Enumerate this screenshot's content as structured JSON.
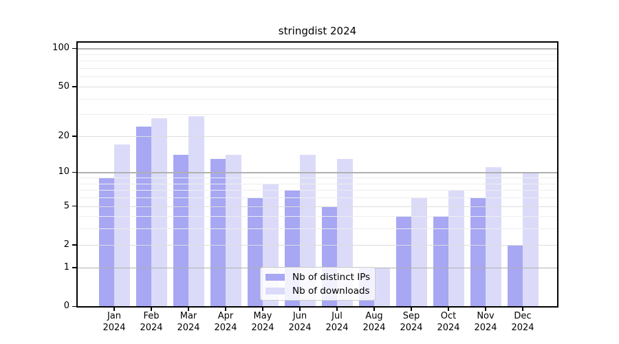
{
  "title": "stringdist 2024",
  "colors": {
    "bar_ips": "#a7a7f3",
    "bar_downloads": "#dbdbf9",
    "grid_major": "#b0b0b0",
    "grid_mid": "#dddddd",
    "grid_minor": "#eeeeee",
    "axis": "#000000",
    "legend_background": "rgba(255,255,255,0.85)",
    "legend_border": "#cccccc",
    "background": "#ffffff"
  },
  "legend": {
    "items": [
      {
        "slug": "distinct-ips",
        "label": "Nb of distinct IPs",
        "color": "#a7a7f3"
      },
      {
        "slug": "downloads",
        "label": "Nb of downloads",
        "color": "#dbdbf9"
      }
    ],
    "position": "lower center"
  },
  "chart_data": {
    "type": "bar",
    "title": "stringdist 2024",
    "xlabel": "",
    "ylabel": "",
    "yscale": "log1p",
    "ylim": [
      0,
      111
    ],
    "grid": "on",
    "legend_position": "lower center",
    "categories": [
      {
        "month": "Jan",
        "year": "2024"
      },
      {
        "month": "Feb",
        "year": "2024"
      },
      {
        "month": "Mar",
        "year": "2024"
      },
      {
        "month": "Apr",
        "year": "2024"
      },
      {
        "month": "May",
        "year": "2024"
      },
      {
        "month": "Jun",
        "year": "2024"
      },
      {
        "month": "Jul",
        "year": "2024"
      },
      {
        "month": "Aug",
        "year": "2024"
      },
      {
        "month": "Sep",
        "year": "2024"
      },
      {
        "month": "Oct",
        "year": "2024"
      },
      {
        "month": "Nov",
        "year": "2024"
      },
      {
        "month": "Dec",
        "year": "2024"
      }
    ],
    "series": [
      {
        "name": "Nb of distinct IPs",
        "slug": "distinct-ips",
        "color": "#a7a7f3",
        "values": [
          9,
          24,
          14,
          13,
          6,
          7,
          5,
          1,
          4,
          4,
          6,
          2
        ]
      },
      {
        "name": "Nb of downloads",
        "slug": "downloads",
        "color": "#dbdbf9",
        "values": [
          17,
          28,
          29,
          14,
          8,
          14,
          13,
          1,
          6,
          7,
          11,
          10
        ]
      }
    ],
    "ytick_values": [
      0,
      1,
      2,
      5,
      10,
      20,
      50,
      100
    ],
    "grid_values": {
      "major": [
        1,
        10,
        100
      ],
      "mid": [
        2,
        5,
        20,
        50
      ],
      "minor": [
        3,
        4,
        6,
        7,
        8,
        9,
        30,
        40,
        60,
        70,
        80,
        90
      ]
    }
  }
}
